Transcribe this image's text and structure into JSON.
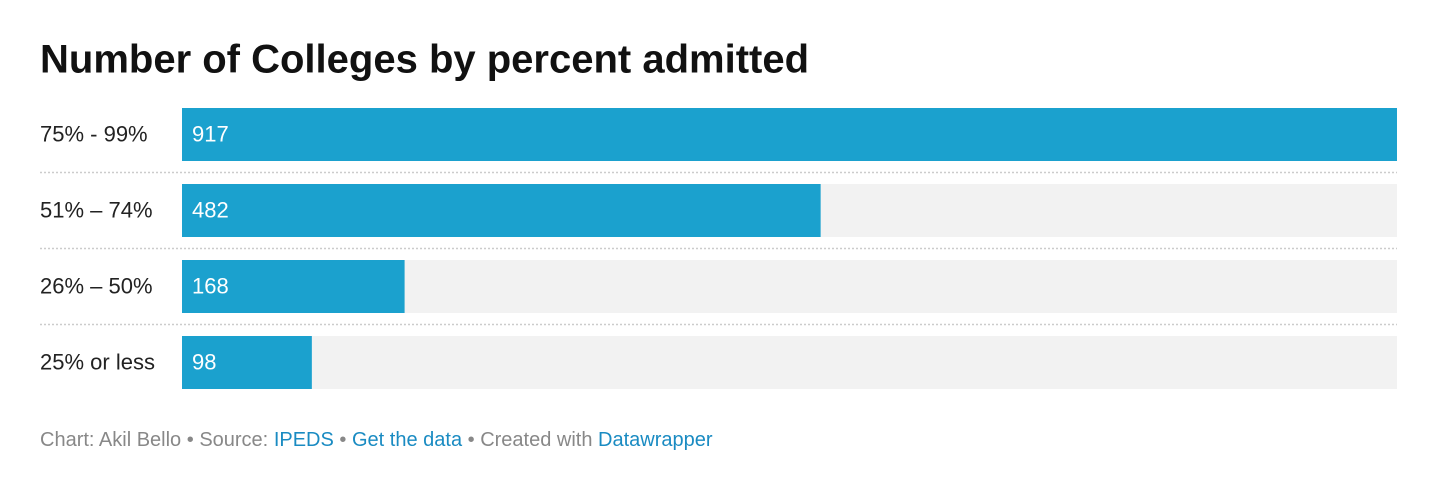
{
  "chart_data": {
    "type": "bar",
    "orientation": "horizontal",
    "title": "Number of Colleges by percent admitted",
    "categories": [
      "75% - 99%",
      "51% – 74%",
      "26% – 50%",
      "25% or less"
    ],
    "values": [
      917,
      482,
      168,
      98
    ],
    "color": "#1ba1ce",
    "track_color": "#f2f2f2",
    "xlim": [
      0,
      917
    ]
  },
  "footer": {
    "byline": "Chart: Akil Bello",
    "separator": "•",
    "source_label": "Source:",
    "source": "IPEDS",
    "get_data": "Get the data",
    "created_with": "Created with",
    "tool": "Datawrapper"
  }
}
